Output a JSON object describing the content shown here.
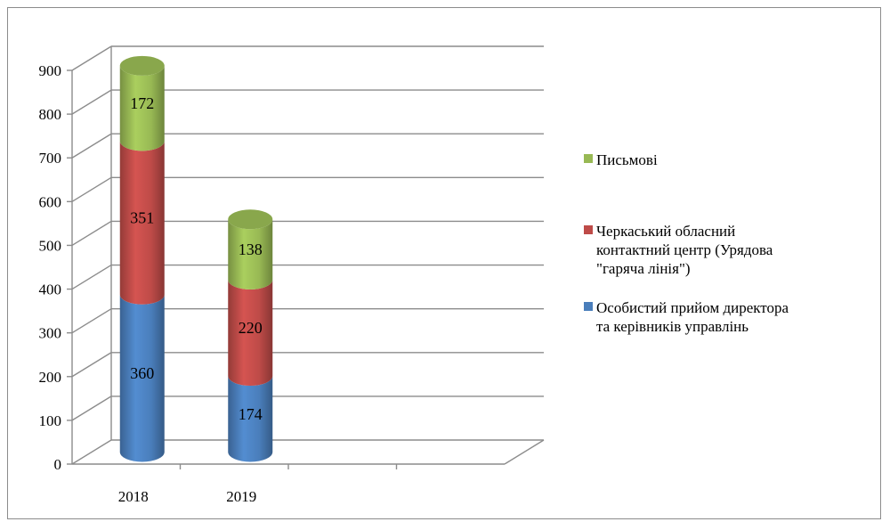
{
  "chart_data": {
    "type": "bar",
    "stacked": true,
    "three_d": true,
    "categories": [
      "2018",
      "2019"
    ],
    "series": [
      {
        "name": "Особистий прийом директора та керівників управлінь",
        "values": [
          360,
          174
        ],
        "color": "#4a7ebb"
      },
      {
        "name": "Черкаський обласний контактний центр (Урядова \"гаряча лінія\")",
        "values": [
          351,
          220
        ],
        "color": "#be4b48"
      },
      {
        "name": "Письмові",
        "values": [
          172,
          138
        ],
        "color": "#98b954"
      }
    ],
    "ylim": [
      0,
      900
    ],
    "yticks": [
      "0",
      "100",
      "200",
      "300",
      "400",
      "500",
      "600",
      "700",
      "800",
      "900"
    ],
    "grid": true,
    "legend_position": "right",
    "legend_lines": [
      [
        "Письмові"
      ],
      [
        "Черкаський обласний",
        "контактний центр (Урядова",
        "\"гаряча лінія\")"
      ],
      [
        "Особистий прийом директора",
        "та керівників управлінь"
      ]
    ]
  }
}
